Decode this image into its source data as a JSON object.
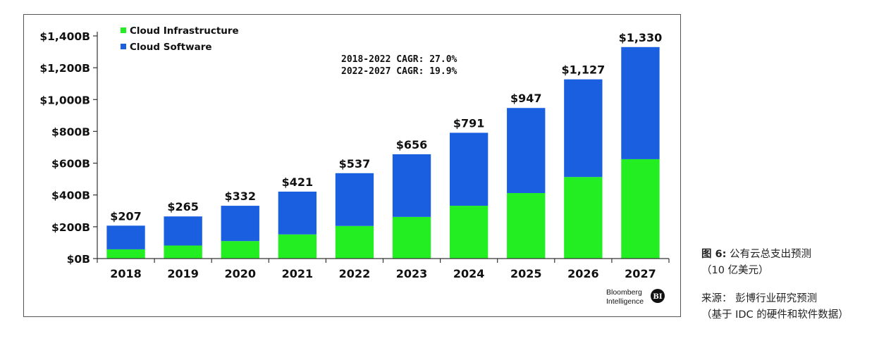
{
  "colors": {
    "infrastructure": "#22ee22",
    "software": "#1a5fe0",
    "axis": "#333333",
    "badge": "#111111"
  },
  "chart_data": {
    "type": "bar",
    "stacked": true,
    "categories": [
      "2018",
      "2019",
      "2020",
      "2021",
      "2022",
      "2023",
      "2024",
      "2025",
      "2026",
      "2027"
    ],
    "series": [
      {
        "name": "Cloud Infrastructure",
        "values": [
          58,
          82,
          110,
          152,
          205,
          262,
          332,
          412,
          513,
          625
        ]
      },
      {
        "name": "Cloud Software",
        "values": [
          149,
          183,
          222,
          269,
          332,
          394,
          459,
          535,
          614,
          705
        ]
      }
    ],
    "totals": [
      207,
      265,
      332,
      421,
      537,
      656,
      791,
      947,
      1127,
      1330
    ],
    "total_labels": [
      "$207",
      "$265",
      "$332",
      "$421",
      "$537",
      "$656",
      "$791",
      "$947",
      "$1,127",
      "$1,330"
    ],
    "ylim": [
      0,
      1400
    ],
    "yticks": [
      0,
      200,
      400,
      600,
      800,
      1000,
      1200,
      1400
    ],
    "ytick_labels": [
      "$0B",
      "$200B",
      "$400B",
      "$600B",
      "$800B",
      "$1,000B",
      "$1,200B",
      "$1,400B"
    ],
    "legend": [
      "Cloud Infrastructure",
      "Cloud Software"
    ],
    "legend_position": "top-left",
    "annotations": [
      "2018-2022 CAGR: 27.0%",
      "2022-2027 CAGR: 19.9%"
    ],
    "grid": false
  },
  "branding": {
    "line1": "Bloomberg",
    "line2": "Intelligence",
    "badge": "BI"
  },
  "caption": {
    "figure_label": "图 6:",
    "title": "公有云总支出预测",
    "unit": "（10 亿美元）",
    "source_label": "来源：",
    "source": "彭博行业研究预测",
    "source_note": "（基于 IDC 的硬件和软件数据）"
  }
}
